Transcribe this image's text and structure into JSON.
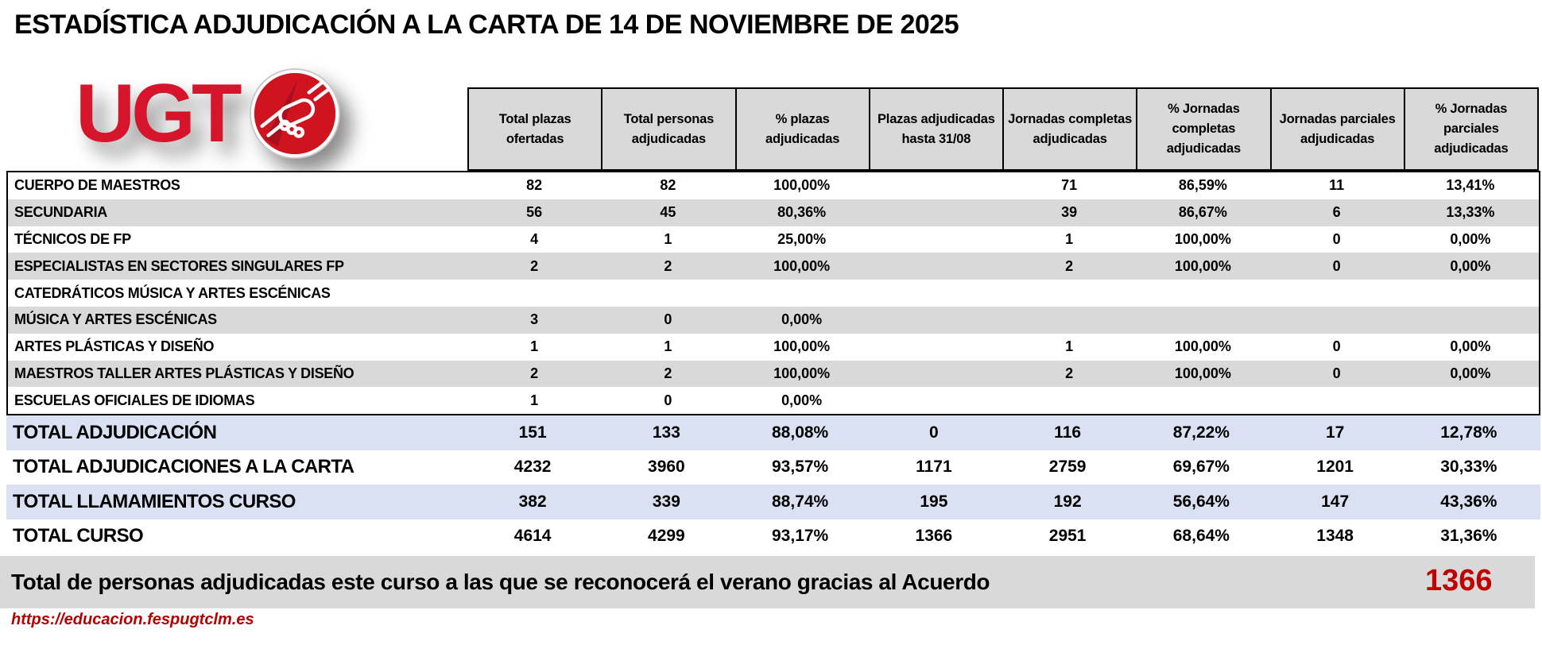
{
  "title": "ESTADÍSTICA ADJUDICACIÓN A LA CARTA DE 14 DE NOVIEMBRE DE 2025",
  "logo": {
    "brand": "UGT",
    "icon": "handshake-icon"
  },
  "table": {
    "columns": [
      "Total plazas ofertadas",
      "Total personas adjudicadas",
      "% plazas adjudicadas",
      "Plazas adjudicadas hasta 31/08",
      "Jornadas completas adjudicadas",
      "% Jornadas completas adjudicadas",
      "Jornadas parciales adjudicadas",
      "% Jornadas parciales adjudicadas"
    ],
    "rows": [
      {
        "label": "CUERPO DE MAESTROS",
        "values": [
          "82",
          "82",
          "100,00%",
          "",
          "71",
          "86,59%",
          "11",
          "13,41%"
        ]
      },
      {
        "label": "SECUNDARIA",
        "values": [
          "56",
          "45",
          "80,36%",
          "",
          "39",
          "86,67%",
          "6",
          "13,33%"
        ]
      },
      {
        "label": "TÉCNICOS DE FP",
        "values": [
          "4",
          "1",
          "25,00%",
          "",
          "1",
          "100,00%",
          "0",
          "0,00%"
        ]
      },
      {
        "label": "ESPECIALISTAS EN SECTORES SINGULARES FP",
        "values": [
          "2",
          "2",
          "100,00%",
          "",
          "2",
          "100,00%",
          "0",
          "0,00%"
        ]
      },
      {
        "label": "CATEDRÁTICOS MÚSICA Y ARTES ESCÉNICAS",
        "values": [
          "",
          "",
          "",
          "",
          "",
          "",
          "",
          ""
        ]
      },
      {
        "label": "MÚSICA Y ARTES ESCÉNICAS",
        "values": [
          "3",
          "0",
          "0,00%",
          "",
          "",
          "",
          "",
          ""
        ]
      },
      {
        "label": "ARTES PLÁSTICAS Y DISEÑO",
        "values": [
          "1",
          "1",
          "100,00%",
          "",
          "1",
          "100,00%",
          "0",
          "0,00%"
        ]
      },
      {
        "label": "MAESTROS TALLER ARTES PLÁSTICAS Y DISEÑO",
        "values": [
          "2",
          "2",
          "100,00%",
          "",
          "2",
          "100,00%",
          "0",
          "0,00%"
        ]
      },
      {
        "label": "ESCUELAS OFICIALES DE IDIOMAS",
        "values": [
          "1",
          "0",
          "0,00%",
          "",
          "",
          "",
          "",
          ""
        ]
      }
    ],
    "totals": [
      {
        "label": "TOTAL ADJUDICACIÓN",
        "values": [
          "151",
          "133",
          "88,08%",
          "0",
          "116",
          "87,22%",
          "17",
          "12,78%"
        ]
      },
      {
        "label": "TOTAL ADJUDICACIONES A LA CARTA",
        "values": [
          "4232",
          "3960",
          "93,57%",
          "1171",
          "2759",
          "69,67%",
          "1201",
          "30,33%"
        ]
      },
      {
        "label": "TOTAL LLAMAMIENTOS CURSO",
        "values": [
          "382",
          "339",
          "88,74%",
          "195",
          "192",
          "56,64%",
          "147",
          "43,36%"
        ]
      },
      {
        "label": "TOTAL CURSO",
        "values": [
          "4614",
          "4299",
          "93,17%",
          "1366",
          "2951",
          "68,64%",
          "1348",
          "31,36%"
        ]
      }
    ]
  },
  "footer": {
    "summary_text": "Total de personas adjudicadas este curso a las que se reconocerá el verano gracias al Acuerdo",
    "summary_value": "1366",
    "url": "https://educacion.fespugtclm.es"
  },
  "colors": {
    "brand_red": "#d6152c",
    "accent_red": "#c00000",
    "stripe_gray": "#d9d9d9",
    "total_lavender": "#d9e1f2"
  }
}
